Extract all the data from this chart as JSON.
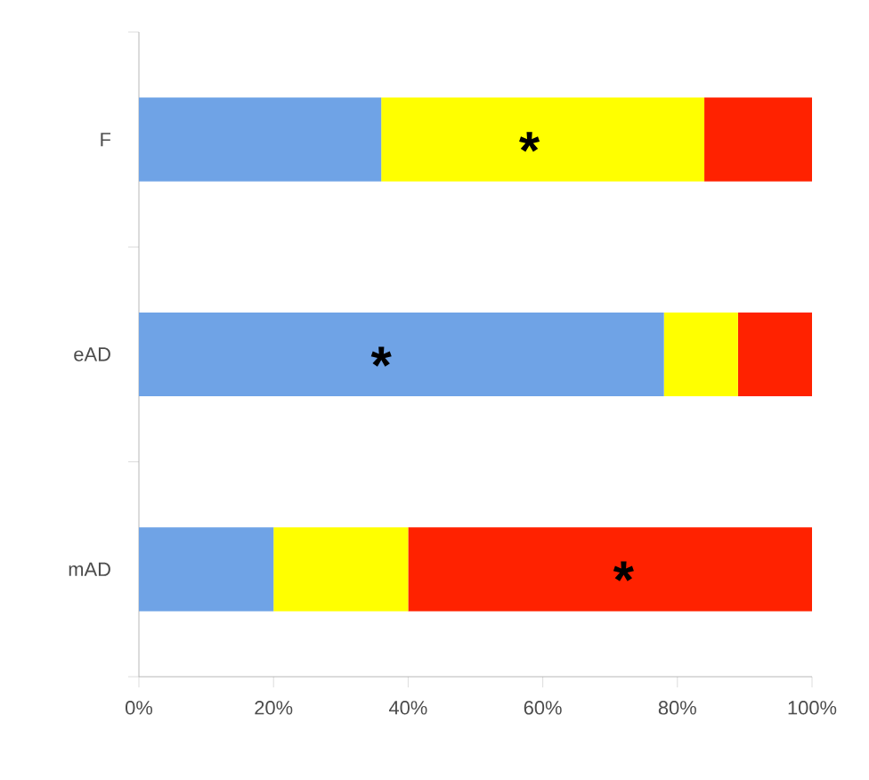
{
  "chart_data": {
    "type": "bar",
    "orientation": "horizontal",
    "stacked": true,
    "categories": [
      "F",
      "eAD",
      "mAD"
    ],
    "series": [
      {
        "color": "#6fa3e6",
        "values": [
          36,
          78,
          20
        ]
      },
      {
        "color": "#ffff00",
        "values": [
          48,
          11,
          20
        ]
      },
      {
        "color": "#ff2200",
        "values": [
          16,
          11,
          60
        ]
      }
    ],
    "xlim": [
      0,
      100
    ],
    "xticks": [
      {
        "value": 0,
        "label": "0%"
      },
      {
        "value": 20,
        "label": "20%"
      },
      {
        "value": 40,
        "label": "40%"
      },
      {
        "value": 60,
        "label": "60%"
      },
      {
        "value": 80,
        "label": "80%"
      },
      {
        "value": 100,
        "label": "100%"
      }
    ],
    "annotations": [
      "*",
      "*",
      "*"
    ]
  }
}
